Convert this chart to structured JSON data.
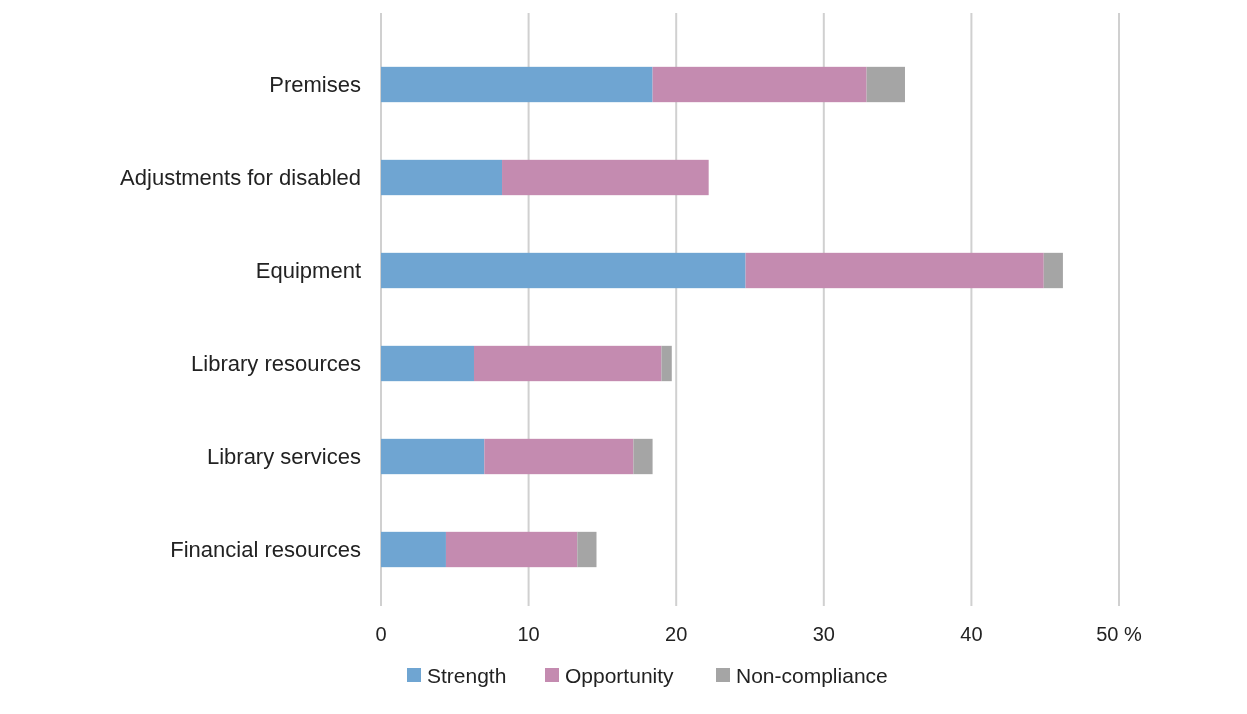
{
  "chart_data": {
    "type": "bar",
    "orientation": "horizontal",
    "stacked": true,
    "categories": [
      "Premises",
      "Adjustments for disabled",
      "Equipment",
      "Library resources",
      "Library services",
      "Financial resources"
    ],
    "series": [
      {
        "name": "Strength",
        "color": "#6fa5d2",
        "values": [
          18.4,
          8.2,
          24.7,
          6.3,
          7.0,
          4.4
        ]
      },
      {
        "name": "Opportunity",
        "color": "#c48bb0",
        "values": [
          14.5,
          14.0,
          20.2,
          12.7,
          10.1,
          8.9
        ]
      },
      {
        "name": "Non-compliance",
        "color": "#a5a5a5",
        "values": [
          2.6,
          null,
          1.3,
          0.7,
          1.3,
          1.3
        ]
      }
    ],
    "xlim": [
      0,
      50
    ],
    "xticks": [
      0,
      10,
      20,
      30,
      40,
      {
        "value": 50,
        "label": "50 %"
      }
    ],
    "grid": "x",
    "legend": "bottom"
  }
}
